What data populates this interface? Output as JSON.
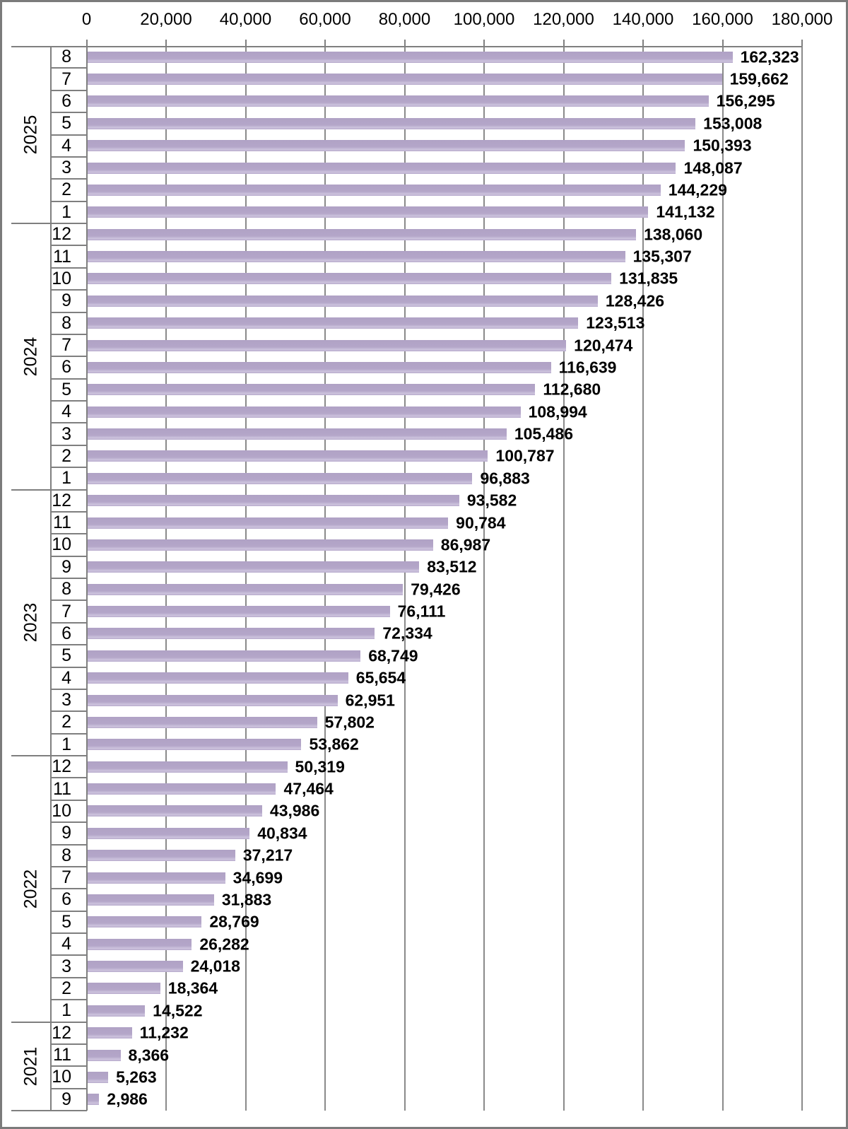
{
  "chart_data": {
    "type": "bar",
    "orientation": "horizontal",
    "title": "",
    "value_axis": {
      "position": "top",
      "min": 0,
      "max": 180000,
      "tick_step": 20000,
      "tick_labels": [
        "0",
        "20,000",
        "40,000",
        "60,000",
        "80,000",
        "100,000",
        "120,000",
        "140,000",
        "160,000",
        "180,000"
      ]
    },
    "category_axis": {
      "levels": [
        "year",
        "month"
      ]
    },
    "legend": "none",
    "grid": "vertical",
    "colors": {
      "bar": "#b4a6c9",
      "bar_edge_light": "#cdc3dd",
      "gridline": "#8a8a8a",
      "axis_line": "#7f7f7f",
      "text": "#000000",
      "border": "#7b7b7b"
    },
    "groups": [
      {
        "year": "2025",
        "months": [
          "8",
          "7",
          "6",
          "5",
          "4",
          "3",
          "2",
          "1"
        ],
        "values": [
          162323,
          159662,
          156295,
          153008,
          150393,
          148087,
          144229,
          141132
        ],
        "labels": [
          "162,323",
          "159,662",
          "156,295",
          "153,008",
          "150,393",
          "148,087",
          "144,229",
          "141,132"
        ]
      },
      {
        "year": "2024",
        "months": [
          "12",
          "11",
          "10",
          "9",
          "8",
          "7",
          "6",
          "5",
          "4",
          "3",
          "2",
          "1"
        ],
        "values": [
          138060,
          135307,
          131835,
          128426,
          123513,
          120474,
          116639,
          112680,
          108994,
          105486,
          100787,
          96883
        ],
        "labels": [
          "138,060",
          "135,307",
          "131,835",
          "128,426",
          "123,513",
          "120,474",
          "116,639",
          "112,680",
          "108,994",
          "105,486",
          "100,787",
          "96,883"
        ]
      },
      {
        "year": "2023",
        "months": [
          "12",
          "11",
          "10",
          "9",
          "8",
          "7",
          "6",
          "5",
          "4",
          "3",
          "2",
          "1"
        ],
        "values": [
          93582,
          90784,
          86987,
          83512,
          79426,
          76111,
          72334,
          68749,
          65654,
          62951,
          57802,
          53862
        ],
        "labels": [
          "93,582",
          "90,784",
          "86,987",
          "83,512",
          "79,426",
          "76,111",
          "72,334",
          "68,749",
          "65,654",
          "62,951",
          "57,802",
          "53,862"
        ]
      },
      {
        "year": "2022",
        "months": [
          "12",
          "11",
          "10",
          "9",
          "8",
          "7",
          "6",
          "5",
          "4",
          "3",
          "2",
          "1"
        ],
        "values": [
          50319,
          47464,
          43986,
          40834,
          37217,
          34699,
          31883,
          28769,
          26282,
          24018,
          18364,
          14522
        ],
        "labels": [
          "50,319",
          "47,464",
          "43,986",
          "40,834",
          "37,217",
          "34,699",
          "31,883",
          "28,769",
          "26,282",
          "24,018",
          "18,364",
          "14,522"
        ]
      },
      {
        "year": "2021",
        "months": [
          "12",
          "11",
          "10",
          "9"
        ],
        "values": [
          11232,
          8366,
          5263,
          2986
        ],
        "labels": [
          "11,232",
          "8,366",
          "5,263",
          "2,986"
        ]
      }
    ]
  }
}
